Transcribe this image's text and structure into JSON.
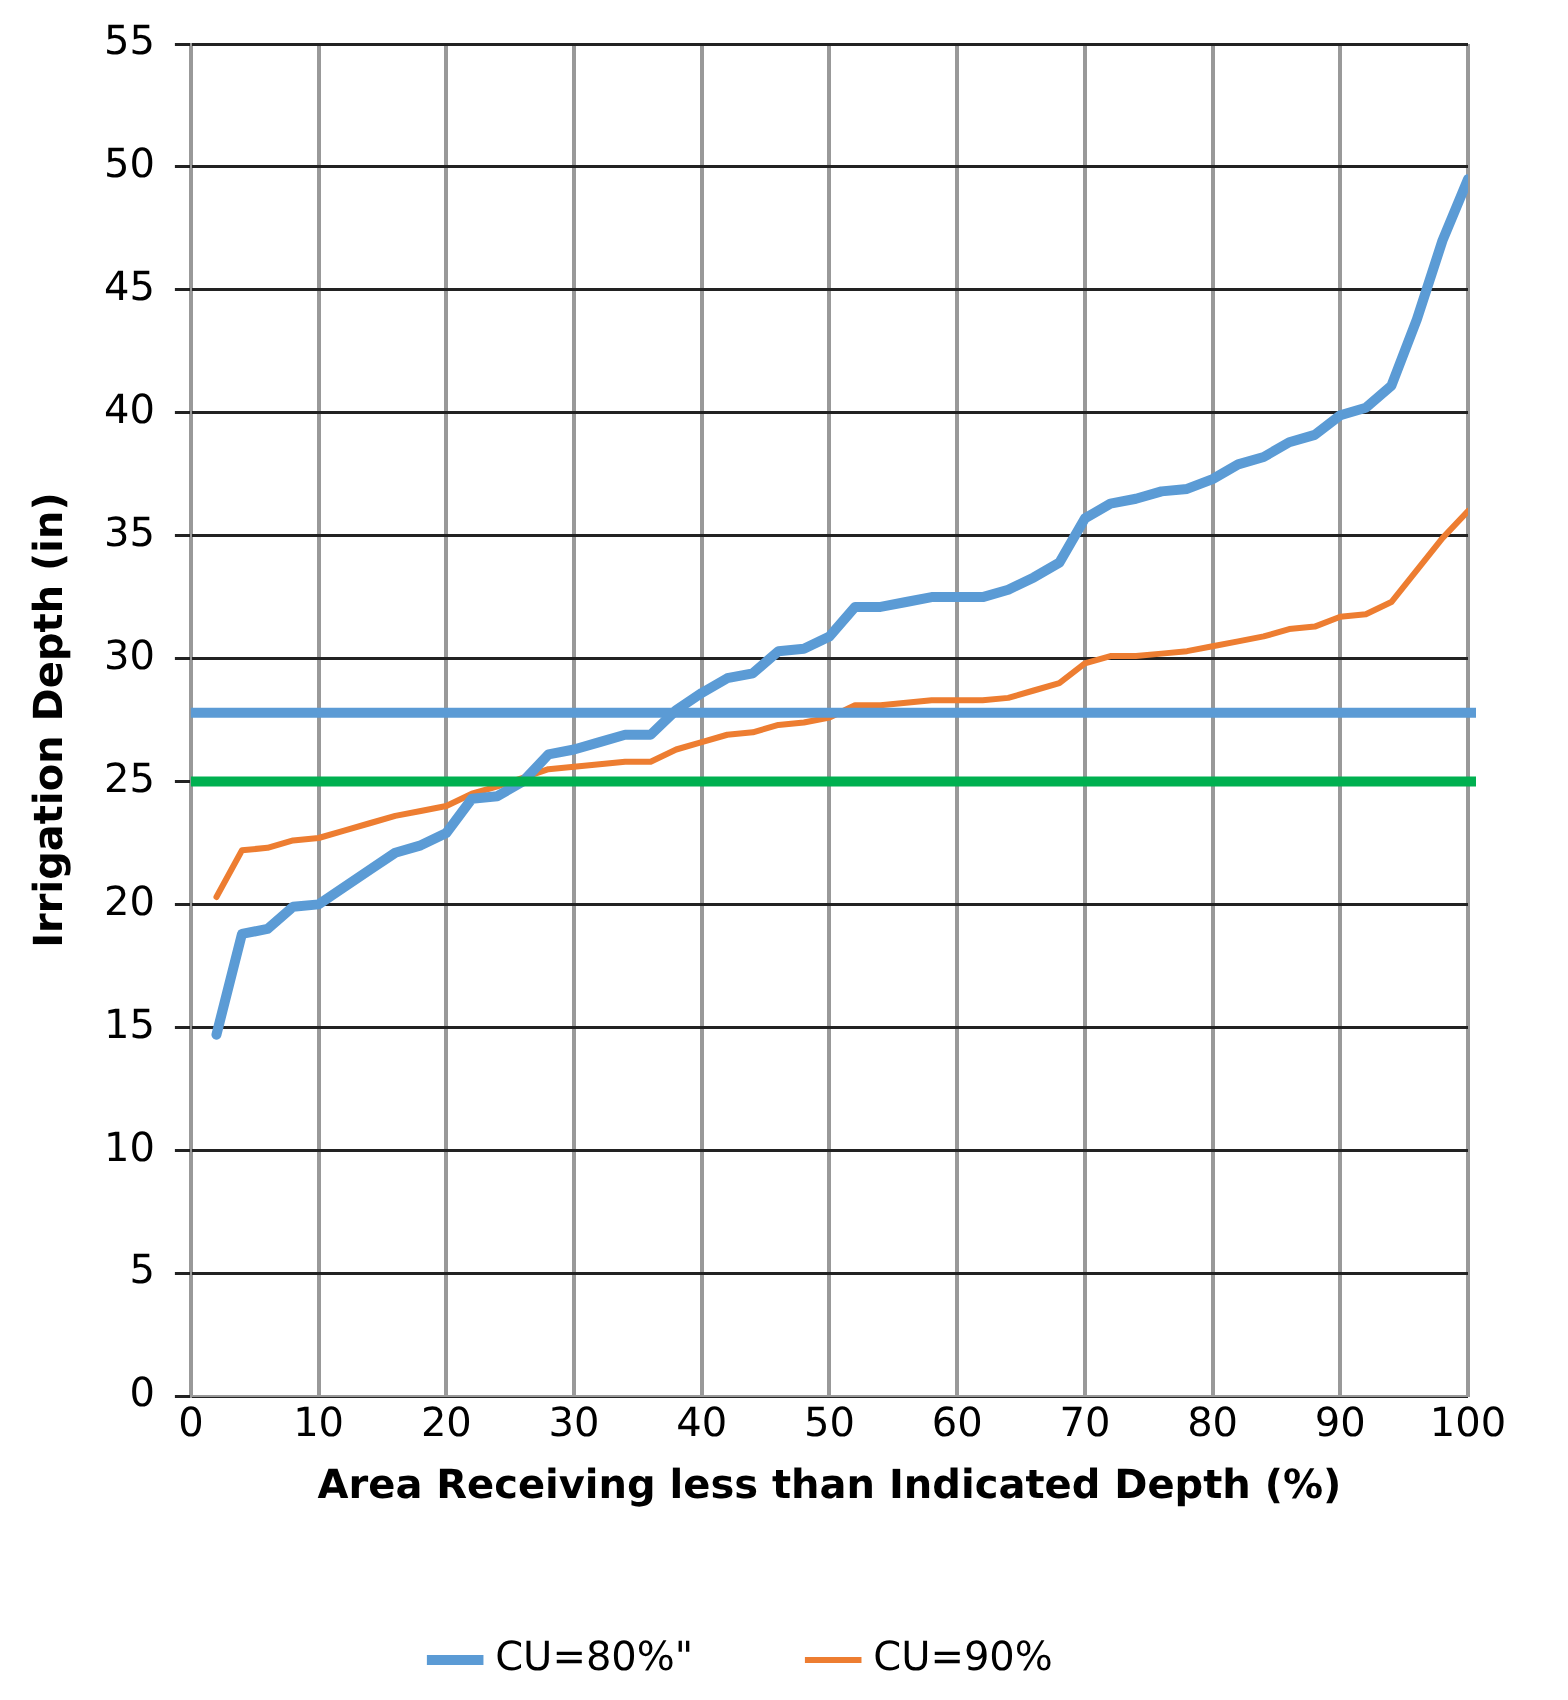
{
  "chart_data": {
    "type": "line",
    "xlabel": "Area Receiving less than Indicated Depth (%)",
    "ylabel": "Irrigation Depth (in)",
    "x": [
      2,
      4,
      6,
      8,
      10,
      12,
      14,
      16,
      18,
      20,
      22,
      24,
      26,
      28,
      30,
      32,
      34,
      36,
      38,
      40,
      42,
      44,
      46,
      48,
      50,
      52,
      54,
      56,
      58,
      60,
      62,
      64,
      66,
      68,
      70,
      72,
      74,
      76,
      78,
      80,
      82,
      84,
      86,
      88,
      90,
      92,
      94,
      96,
      98,
      100
    ],
    "series": [
      {
        "name": "CU=80%\"",
        "color": "#5b9bd5",
        "values": [
          14.7,
          18.8,
          19.0,
          19.9,
          20.0,
          20.7,
          21.4,
          22.1,
          22.4,
          22.9,
          24.3,
          24.4,
          25.0,
          26.1,
          26.3,
          26.6,
          26.9,
          26.9,
          27.9,
          28.6,
          29.2,
          29.4,
          30.3,
          30.4,
          30.9,
          32.1,
          32.1,
          32.3,
          32.5,
          32.5,
          32.5,
          32.8,
          33.3,
          33.9,
          35.7,
          36.3,
          36.5,
          36.8,
          36.9,
          37.3,
          37.9,
          38.2,
          38.8,
          39.1,
          39.9,
          40.2,
          41.1,
          43.8,
          47.0,
          49.5
        ]
      },
      {
        "name": "CU=90%",
        "color": "#ed7d31",
        "values": [
          20.3,
          22.2,
          22.3,
          22.6,
          22.7,
          23.0,
          23.3,
          23.6,
          23.8,
          24.0,
          24.5,
          24.8,
          null,
          25.5,
          25.6,
          25.7,
          25.8,
          25.8,
          26.3,
          26.6,
          26.9,
          27.0,
          27.3,
          27.4,
          27.6,
          28.1,
          28.1,
          28.2,
          28.3,
          28.3,
          28.3,
          28.4,
          28.7,
          29.0,
          29.8,
          30.1,
          30.1,
          30.2,
          30.3,
          30.5,
          30.7,
          30.9,
          31.2,
          31.3,
          31.7,
          31.8,
          32.3,
          33.6,
          34.9,
          36.0
        ]
      }
    ],
    "ref_lines": [
      {
        "axis": "y",
        "value": 27.8,
        "color": "#5b9bd5"
      },
      {
        "axis": "y",
        "value": 25,
        "color": "#00b050"
      }
    ],
    "xlim": [
      0,
      100
    ],
    "xticks": [
      0,
      10,
      20,
      30,
      40,
      50,
      60,
      70,
      80,
      90,
      100
    ],
    "ylim": [
      0,
      55
    ],
    "yticks": [
      0,
      5,
      10,
      15,
      20,
      25,
      30,
      35,
      40,
      45,
      50,
      55
    ],
    "grid": true,
    "legend": "bottom",
    "marker": "none",
    "line_style": "solid"
  }
}
